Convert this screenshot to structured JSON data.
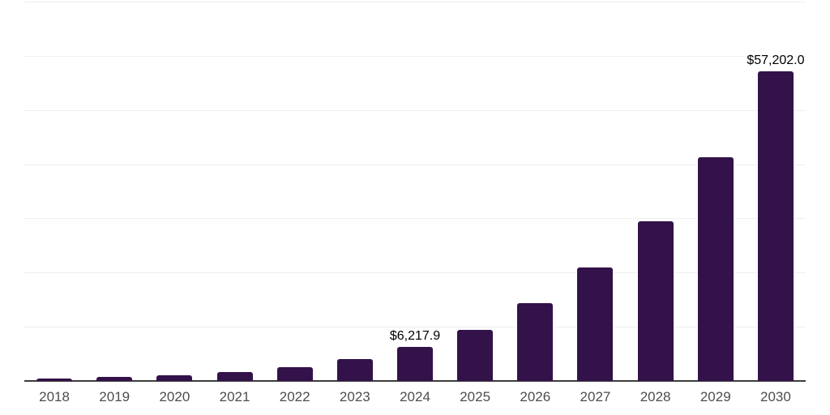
{
  "colors": {
    "background": "#ffffff",
    "bar": "#331149",
    "axis_line": "#3d3d3d",
    "gridline": "#efefef",
    "tick_label": "#4d4d4d",
    "value_label": "#000000"
  },
  "chart_data": {
    "type": "bar",
    "title": "",
    "xlabel": "",
    "ylabel": "",
    "categories": [
      "2018",
      "2019",
      "2020",
      "2021",
      "2022",
      "2023",
      "2024",
      "2025",
      "2026",
      "2027",
      "2028",
      "2029",
      "2030"
    ],
    "values": [
      450,
      680,
      1050,
      1650,
      2600,
      4050,
      6217.9,
      9420,
      14360,
      20940,
      29460,
      41280,
      57202.0
    ],
    "value_labels": {
      "2024": "$6,217.9",
      "2030": "$57,202.0"
    },
    "ylim": [
      0,
      70000
    ],
    "gridline_step": 10000,
    "grid": true,
    "legend": false,
    "y_axis_tick_labels": false
  }
}
